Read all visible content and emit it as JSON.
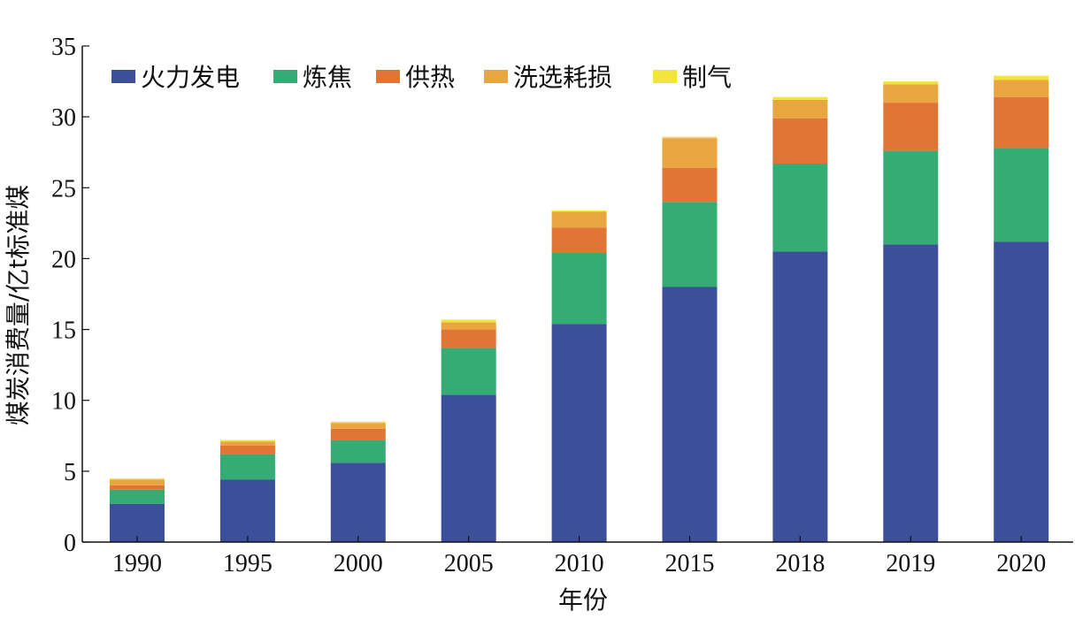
{
  "chart_data": {
    "type": "bar",
    "stacked": true,
    "categories": [
      "1990",
      "1995",
      "2000",
      "2005",
      "2010",
      "2015",
      "2018",
      "2019",
      "2020"
    ],
    "series": [
      {
        "name": "火力发电",
        "color": "#3b4f9b",
        "values": [
          2.7,
          4.4,
          5.6,
          10.4,
          15.4,
          18.0,
          20.5,
          21.0,
          21.2
        ]
      },
      {
        "name": "炼焦",
        "color": "#35ac74",
        "values": [
          1.0,
          1.8,
          1.6,
          3.3,
          5.0,
          6.0,
          6.2,
          6.6,
          6.6
        ]
      },
      {
        "name": "供热",
        "color": "#e07535",
        "values": [
          0.3,
          0.6,
          0.8,
          1.3,
          1.8,
          2.4,
          3.2,
          3.4,
          3.6
        ]
      },
      {
        "name": "洗选耗损",
        "color": "#e9a53f",
        "values": [
          0.4,
          0.3,
          0.4,
          0.5,
          1.1,
          2.1,
          1.3,
          1.3,
          1.2
        ]
      },
      {
        "name": "制气",
        "color": "#f2e43a",
        "values": [
          0.1,
          0.1,
          0.1,
          0.2,
          0.1,
          0.1,
          0.2,
          0.2,
          0.3
        ]
      }
    ],
    "xlabel": "年份",
    "ylabel": "煤炭消费量/亿t标准煤",
    "ylim": [
      0,
      35
    ],
    "yticks": [
      0,
      5,
      10,
      15,
      20,
      25,
      30,
      35
    ],
    "grid": false,
    "legend_position": "top-left"
  }
}
